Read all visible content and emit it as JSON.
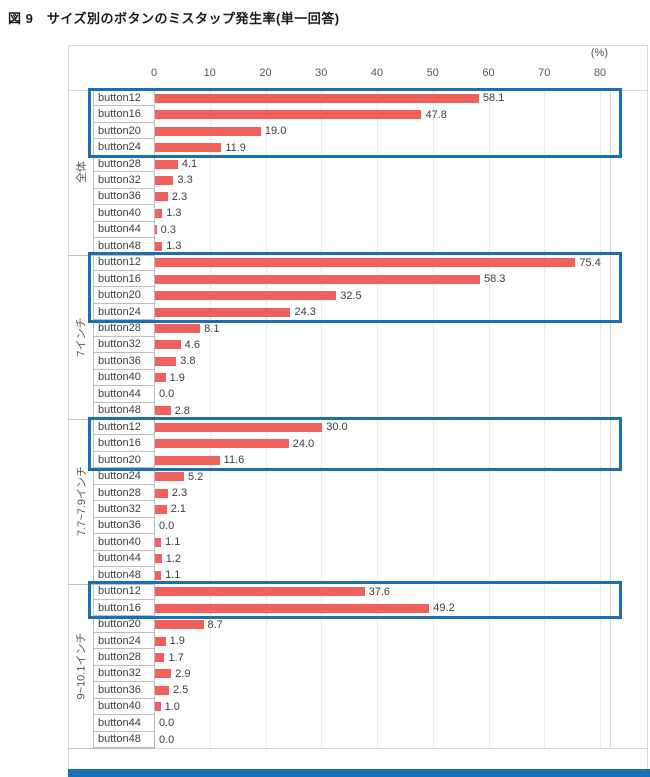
{
  "title": "図 9　サイズ別のボタンのミスタップ発生率(単一回答)",
  "chart_data": {
    "type": "bar",
    "orientation": "horizontal",
    "title": "図 9　サイズ別のボタンのミスタップ発生率(単一回答)",
    "unit_label": "(%)",
    "xlim": [
      0,
      80
    ],
    "x_ticks": [
      "0",
      "10",
      "20",
      "30",
      "40",
      "50",
      "60",
      "70",
      "80"
    ],
    "grid": "vertical-dotted",
    "categories": [
      "button12",
      "button16",
      "button20",
      "button24",
      "button28",
      "button32",
      "button36",
      "button40",
      "button44",
      "button48"
    ],
    "groups": [
      {
        "name": "全体",
        "values": [
          58.1,
          47.8,
          19.0,
          11.9,
          4.1,
          3.3,
          2.3,
          1.3,
          0.3,
          1.3
        ],
        "highlighted_rows": 4
      },
      {
        "name": "7インチ",
        "values": [
          75.4,
          58.3,
          32.5,
          24.3,
          8.1,
          4.6,
          3.8,
          1.9,
          0.0,
          2.8
        ],
        "highlighted_rows": 4
      },
      {
        "name": "7.7~7.9インチ",
        "values": [
          30.0,
          24.0,
          11.6,
          5.2,
          2.3,
          2.1,
          0.0,
          1.1,
          1.2,
          1.1
        ],
        "highlighted_rows": 3
      },
      {
        "name": "9~10.1インチ",
        "values": [
          37.6,
          49.2,
          8.7,
          1.9,
          1.7,
          2.9,
          2.5,
          1.0,
          0.0,
          0.0
        ],
        "highlighted_rows": 2
      }
    ],
    "colors": {
      "bar": "#F0615D",
      "highlight_border": "#1C6FB5",
      "bottom_accent": "#1C6FB5",
      "tick_text": "#595959",
      "label_text": "#404040"
    }
  }
}
